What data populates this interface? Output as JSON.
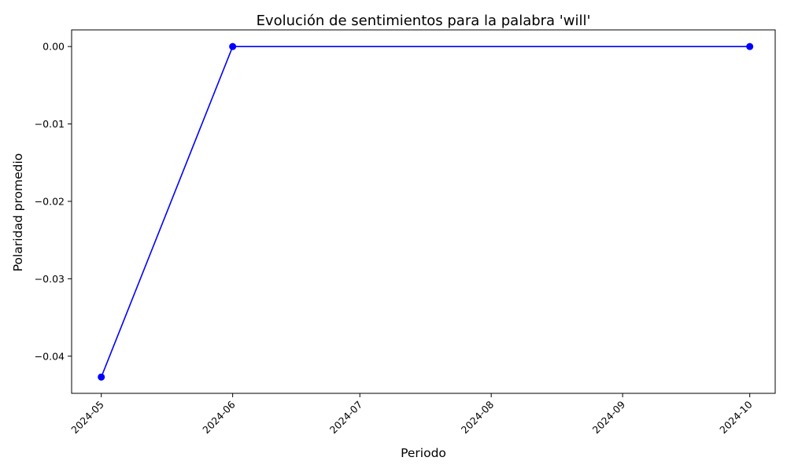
{
  "chart_data": {
    "type": "line",
    "title": "Evolución de sentimientos para la palabra 'will'",
    "xlabel": "Periodo",
    "ylabel": "Polaridad promedio",
    "x": [
      "2024-05",
      "2024-06",
      "2024-10"
    ],
    "series": [
      {
        "values": [
          -0.0427,
          0.0,
          0.0
        ],
        "color": "#0000ff",
        "marker": "circle"
      }
    ],
    "x_ticks": [
      "2024-05",
      "2024-06",
      "2024-07",
      "2024-08",
      "2024-09",
      "2024-10"
    ],
    "y_ticks": [
      "0.00",
      "−0.01",
      "−0.02",
      "−0.03",
      "−0.04"
    ],
    "y_tick_values": [
      0.0,
      -0.01,
      -0.02,
      -0.03,
      -0.04
    ],
    "ylim": [
      -0.0448,
      0.00215
    ],
    "xlim": [
      "2024-04-24",
      "2024-10-07"
    ],
    "grid": false,
    "legend": "none"
  }
}
